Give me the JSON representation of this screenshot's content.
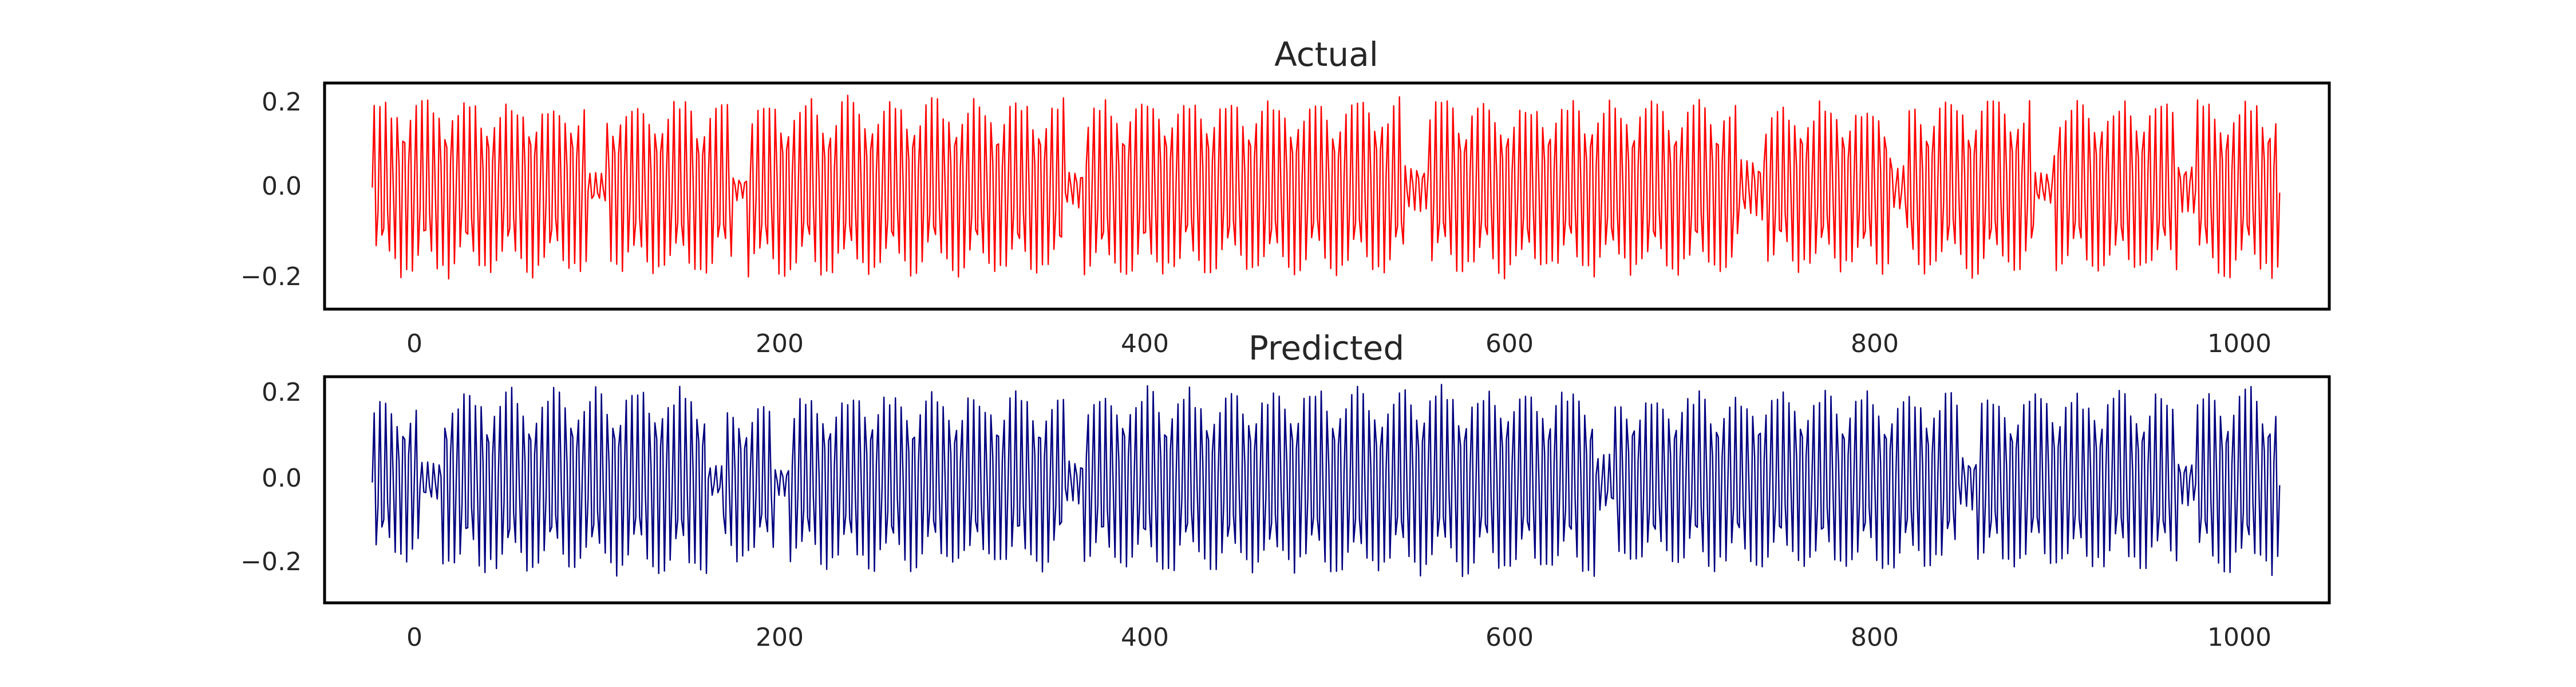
{
  "chart_data": [
    {
      "type": "line",
      "title": "Actual",
      "xlabel": "",
      "ylabel": "",
      "xlim": [
        -25,
        1025
      ],
      "ylim": [
        -0.29,
        0.25
      ],
      "x_ticks": [
        "0",
        "200",
        "400",
        "600",
        "800",
        "1000"
      ],
      "y_ticks": [
        "−0.2",
        "0.0",
        "0.2"
      ],
      "grid": false,
      "legend": "none",
      "series": [
        {
          "color": "#ff0000",
          "x_range": [
            0,
            999
          ],
          "segments": [
            {
              "from": 0,
              "to": 112,
              "amplitude": 0.22
            },
            {
              "from": 112,
              "to": 122,
              "amplitude": 0.04
            },
            {
              "from": 122,
              "to": 188,
              "amplitude": 0.22
            },
            {
              "from": 188,
              "to": 196,
              "amplitude": 0.03
            },
            {
              "from": 196,
              "to": 362,
              "amplitude": 0.22
            },
            {
              "from": 362,
              "to": 372,
              "amplitude": 0.05
            },
            {
              "from": 372,
              "to": 540,
              "amplitude": 0.22
            },
            {
              "from": 540,
              "to": 552,
              "amplitude": 0.06
            },
            {
              "from": 552,
              "to": 715,
              "amplitude": 0.22
            },
            {
              "from": 715,
              "to": 728,
              "amplitude": 0.08
            },
            {
              "from": 728,
              "to": 795,
              "amplitude": 0.21
            },
            {
              "from": 795,
              "to": 803,
              "amplitude": 0.06
            },
            {
              "from": 803,
              "to": 870,
              "amplitude": 0.22
            },
            {
              "from": 870,
              "to": 880,
              "amplitude": 0.04
            },
            {
              "from": 880,
              "to": 945,
              "amplitude": 0.22
            },
            {
              "from": 945,
              "to": 955,
              "amplitude": 0.07
            },
            {
              "from": 955,
              "to": 999,
              "amplitude": 0.22
            }
          ]
        }
      ]
    },
    {
      "type": "line",
      "title": "Predicted",
      "xlabel": "",
      "ylabel": "",
      "xlim": [
        -25,
        1025
      ],
      "ylim": [
        -0.29,
        0.25
      ],
      "x_ticks": [
        "0",
        "200",
        "400",
        "600",
        "800",
        "1000"
      ],
      "y_ticks": [
        "−0.2",
        "0.0",
        "0.2"
      ],
      "grid": false,
      "legend": "none",
      "series": [
        {
          "color": "#000080",
          "x_range": [
            0,
            999
          ],
          "segments": [
            {
              "from": 0,
              "to": 24,
              "amplitude": 0.21
            },
            {
              "from": 24,
              "to": 36,
              "amplitude": 0.05
            },
            {
              "from": 36,
              "to": 175,
              "amplitude": 0.23
            },
            {
              "from": 175,
              "to": 183,
              "amplitude": 0.04
            },
            {
              "from": 183,
              "to": 210,
              "amplitude": 0.2
            },
            {
              "from": 210,
              "to": 218,
              "amplitude": 0.04
            },
            {
              "from": 218,
              "to": 362,
              "amplitude": 0.22
            },
            {
              "from": 362,
              "to": 372,
              "amplitude": 0.06
            },
            {
              "from": 372,
              "to": 640,
              "amplitude": 0.23
            },
            {
              "from": 640,
              "to": 650,
              "amplitude": 0.08
            },
            {
              "from": 650,
              "to": 830,
              "amplitude": 0.22
            },
            {
              "from": 830,
              "to": 840,
              "amplitude": 0.07
            },
            {
              "from": 840,
              "to": 945,
              "amplitude": 0.22
            },
            {
              "from": 945,
              "to": 955,
              "amplitude": 0.06
            },
            {
              "from": 955,
              "to": 999,
              "amplitude": 0.23
            }
          ]
        }
      ]
    }
  ]
}
